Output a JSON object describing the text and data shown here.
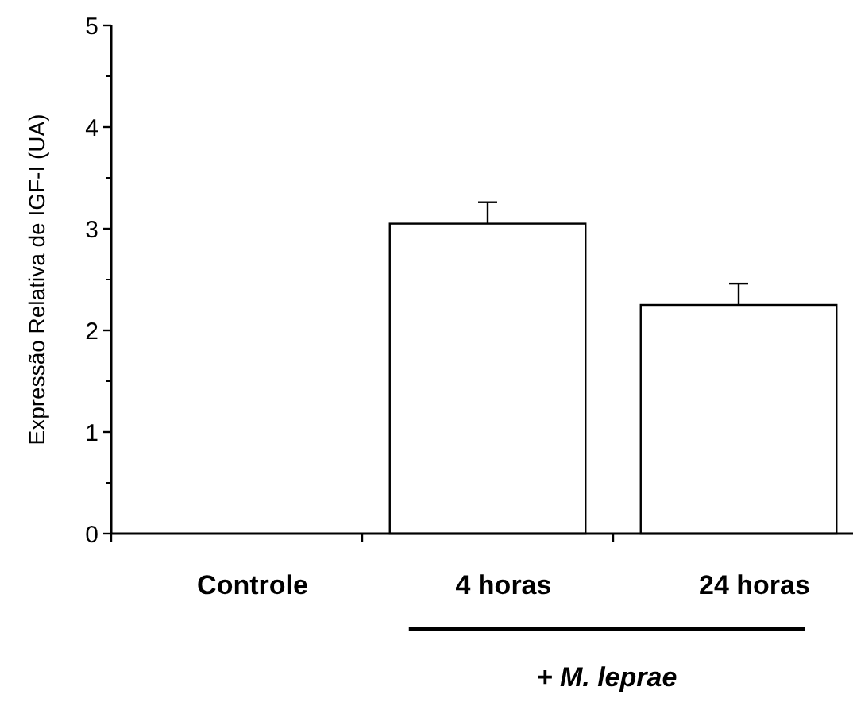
{
  "chart_data": {
    "type": "bar",
    "ylabel": "Expressão Relativa de IGF-I (UA)",
    "categories": [
      "Controle",
      "4 horas",
      "24 horas"
    ],
    "values": [
      0,
      3.05,
      2.25
    ],
    "errors": [
      null,
      0.21,
      0.21
    ],
    "color": "#ffffff",
    "ylim": [
      0,
      5
    ],
    "yticks": [
      0,
      1,
      2,
      3,
      4,
      5
    ],
    "grid": false,
    "annotations": [
      "+ M. leprae"
    ]
  }
}
